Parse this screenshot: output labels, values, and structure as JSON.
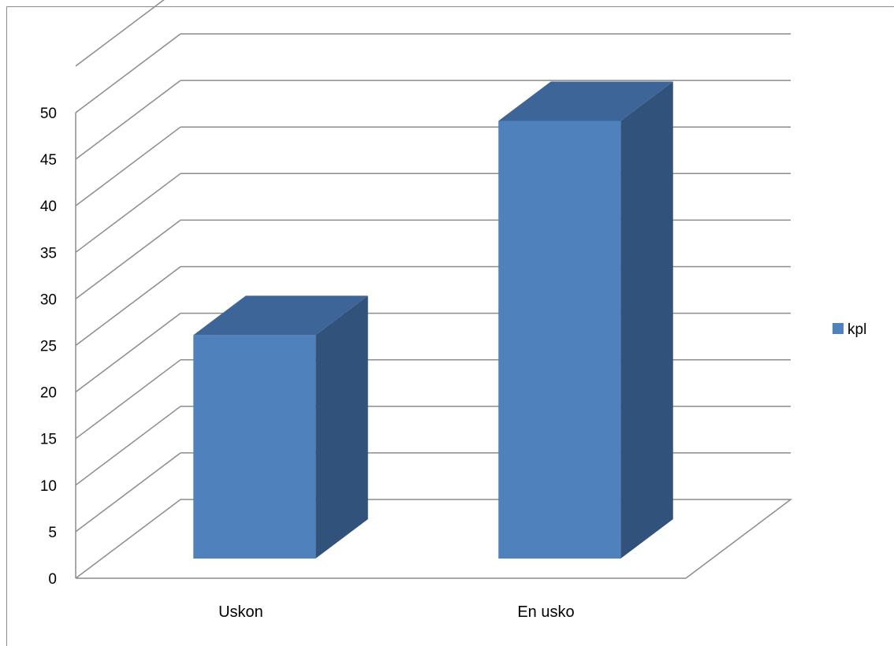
{
  "chart_data": {
    "type": "bar",
    "categories": [
      "Uskon",
      "En usko"
    ],
    "series": [
      {
        "name": "kpl",
        "values": [
          24,
          47
        ],
        "color": "#4f81bd"
      }
    ],
    "ylim": [
      0,
      50
    ],
    "y_ticks": [
      0,
      5,
      10,
      15,
      20,
      25,
      30,
      35,
      40,
      45,
      50
    ],
    "title": "",
    "xlabel": "",
    "ylabel": "",
    "grid": true,
    "projection": "3d-column",
    "legend_position": "right",
    "colors": {
      "bar_front": "#4f81bd",
      "bar_side": "#31527b",
      "bar_top": "#3e6598",
      "grid": "#8c8c8c",
      "frame": "#8c8c8c"
    }
  }
}
